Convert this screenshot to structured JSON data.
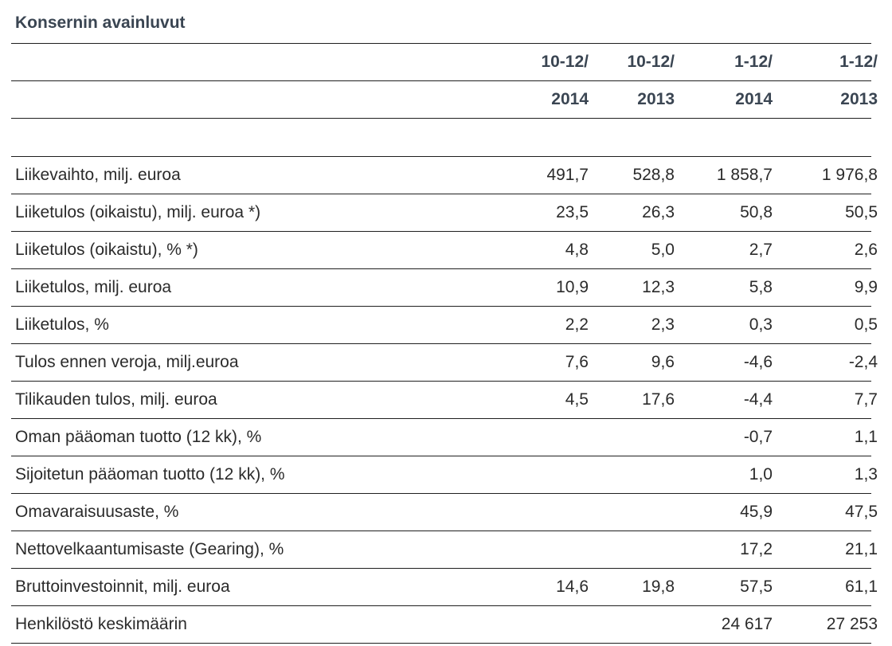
{
  "title": "Konsernin avainluvut",
  "header_row1": [
    "10-12/",
    "10-12/",
    "1-12/",
    "1-12/"
  ],
  "header_row2": [
    "2014",
    "2013",
    "2014",
    "2013"
  ],
  "rows": [
    {
      "label": "Liikevaihto, milj. euroa",
      "values": [
        "491,7",
        "528,8",
        "1 858,7",
        "1 976,8"
      ]
    },
    {
      "label": "Liiketulos (oikaistu), milj. euroa *)",
      "values": [
        "23,5",
        "26,3",
        "50,8",
        "50,5"
      ]
    },
    {
      "label": "Liiketulos (oikaistu), % *)",
      "values": [
        "4,8",
        "5,0",
        "2,7",
        "2,6"
      ]
    },
    {
      "label": "Liiketulos, milj. euroa",
      "values": [
        "10,9",
        "12,3",
        "5,8",
        "9,9"
      ]
    },
    {
      "label": "Liiketulos, %",
      "values": [
        "2,2",
        "2,3",
        "0,3",
        "0,5"
      ]
    },
    {
      "label": "Tulos ennen veroja, milj.euroa",
      "values": [
        "7,6",
        "9,6",
        "-4,6",
        "-2,4"
      ]
    },
    {
      "label": "Tilikauden tulos, milj. euroa",
      "values": [
        "4,5",
        "17,6",
        "-4,4",
        "7,7"
      ]
    },
    {
      "label": "Oman pääoman tuotto (12 kk), %",
      "values": [
        "",
        "",
        "-0,7",
        "1,1"
      ]
    },
    {
      "label": "Sijoitetun pääoman tuotto (12 kk), %",
      "values": [
        "",
        "",
        "1,0",
        "1,3"
      ]
    },
    {
      "label": "Omavaraisuusaste, %",
      "values": [
        "",
        "",
        "45,9",
        "47,5"
      ]
    },
    {
      "label": "Nettovelkaantumisaste (Gearing), %",
      "values": [
        "",
        "",
        "17,2",
        "21,1"
      ]
    },
    {
      "label": "Bruttoinvestoinnit, milj. euroa",
      "values": [
        "14,6",
        "19,8",
        "57,5",
        "61,1"
      ]
    },
    {
      "label": "Henkilöstö keskimäärin",
      "values": [
        "",
        "",
        "24 617",
        "27 253"
      ]
    }
  ]
}
